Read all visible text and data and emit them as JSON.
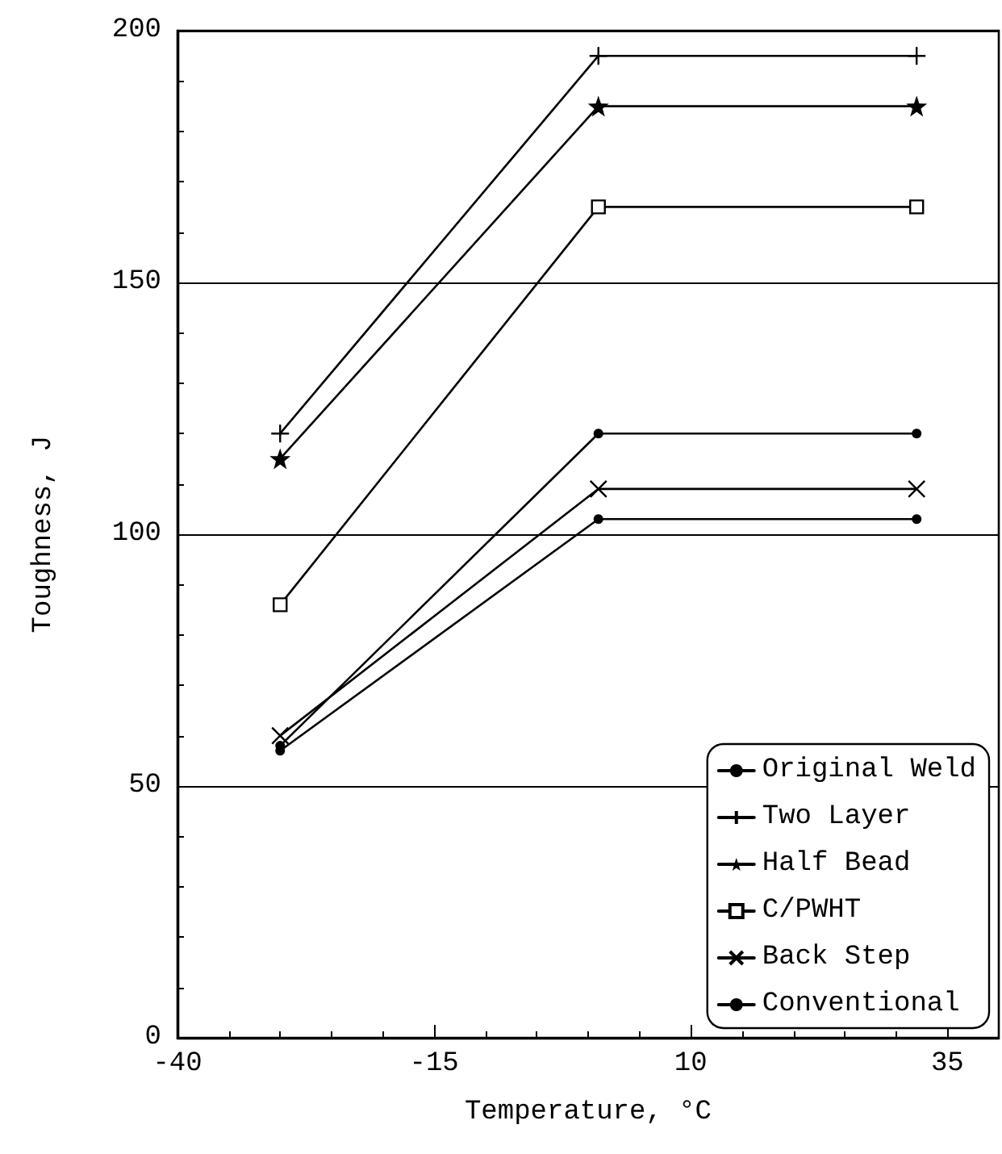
{
  "chart_data": {
    "type": "line",
    "xlabel": "Temperature, °C",
    "ylabel": "Toughness, J",
    "xlim": [
      -40,
      40
    ],
    "xticks": [
      -40,
      -15,
      10,
      35
    ],
    "ylim": [
      0,
      200
    ],
    "yticks": [
      0,
      50,
      100,
      150,
      200
    ],
    "grid": "y",
    "legend": "bottom right",
    "line_style": "solid",
    "series": [
      {
        "name": "Original Weld",
        "color": "#000000",
        "marker": "circle",
        "x": [
          -30,
          1,
          32
        ],
        "values": [
          58,
          120,
          120
        ]
      },
      {
        "name": "Two Layer",
        "color": "#000000",
        "marker": "cross",
        "x": [
          -30,
          1,
          32
        ],
        "values": [
          120,
          195,
          195
        ]
      },
      {
        "name": "Half Bead",
        "color": "#000000",
        "marker": "star",
        "x": [
          -30,
          1,
          32
        ],
        "values": [
          115,
          185,
          185
        ]
      },
      {
        "name": "C/PWHT",
        "color": "#000000",
        "marker": "square",
        "x": [
          -30,
          1,
          32
        ],
        "values": [
          86,
          165,
          165
        ]
      },
      {
        "name": "Back Step",
        "color": "#000000",
        "marker": "x",
        "x": [
          -30,
          1,
          32
        ],
        "values": [
          60,
          109,
          109
        ]
      },
      {
        "name": "Conventional",
        "color": "#000000",
        "marker": "circle",
        "x": [
          -30,
          1,
          32
        ],
        "values": [
          57,
          103,
          103
        ]
      }
    ]
  }
}
